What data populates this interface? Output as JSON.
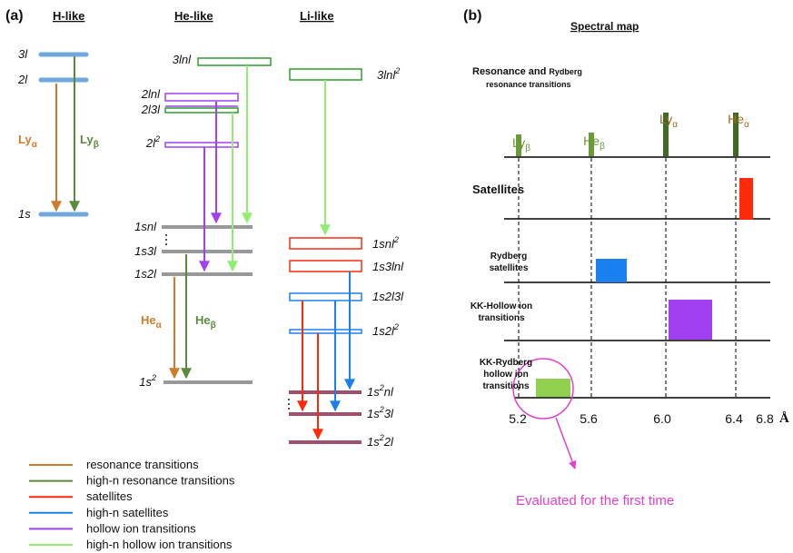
{
  "panel_a": {
    "tag": "(a)",
    "h_like": {
      "title": "H-like",
      "levels": [
        "3l",
        "2l",
        "1s"
      ],
      "arrow_alpha": {
        "text": "Ly",
        "sub": "α"
      },
      "arrow_beta": {
        "text": "Ly",
        "sub": "β"
      }
    },
    "he_like": {
      "title": "He-like",
      "levels": [
        {
          "text": "3lnl"
        },
        {
          "text": "2lnl"
        },
        {
          "text": "2l3l"
        },
        {
          "text": "2l",
          "sup": "2"
        },
        {
          "text": "1snl"
        },
        {
          "text": "1s3l"
        },
        {
          "text": "1s2l"
        },
        {
          "text": "1s",
          "sup": "2"
        }
      ],
      "arrow_alpha": {
        "text": "He",
        "sub": "α"
      },
      "arrow_beta": {
        "text": "He",
        "sub": "β"
      }
    },
    "li_like": {
      "title": "Li-like",
      "levels": [
        {
          "text": "3lnl",
          "sup": "2"
        },
        {
          "text": "1snl",
          "sup": "2"
        },
        {
          "text": "1s3lnl"
        },
        {
          "text": "1s2l3l"
        },
        {
          "text": "1s2l",
          "sup": "2"
        },
        {
          "pre": "1s",
          "sup": "2",
          "text": "nl"
        },
        {
          "pre": "1s",
          "sup": "2",
          "text": "3l"
        },
        {
          "pre": "1s",
          "sup": "2",
          "text": "2l"
        }
      ]
    },
    "legend": [
      "resonance transitions",
      "high-n resonance transitions",
      "satellites",
      "high-n satellites",
      "hollow ion transitions",
      "high-n hollow ion transitions"
    ]
  },
  "panel_b": {
    "tag": "(b)",
    "title": "Spectral map",
    "rows": [
      [
        "Resonance and ",
        "Rydberg"
      ],
      [
        "resonance transitions"
      ]
    ],
    "peaks": [
      {
        "text": "Ly",
        "sub": "β"
      },
      {
        "text": "He",
        "sub": "β"
      },
      {
        "text": "Ly",
        "sub": "α"
      },
      {
        "text": "He",
        "sub": "α"
      }
    ],
    "satellites": "Satellites",
    "rydberg_satellites": [
      "Rydberg",
      "satellites"
    ],
    "kk_hollow": [
      "KK-Hollow ion",
      "transitions"
    ],
    "kk_rydberg": [
      "KK-Rydberg",
      "hollow ion",
      "transitions"
    ],
    "axis_ticks": [
      "5.2",
      "5.6",
      "6.0",
      "6.4",
      "6.8"
    ],
    "axis_unit": "Å",
    "note": "Evaluated for the first time"
  }
}
